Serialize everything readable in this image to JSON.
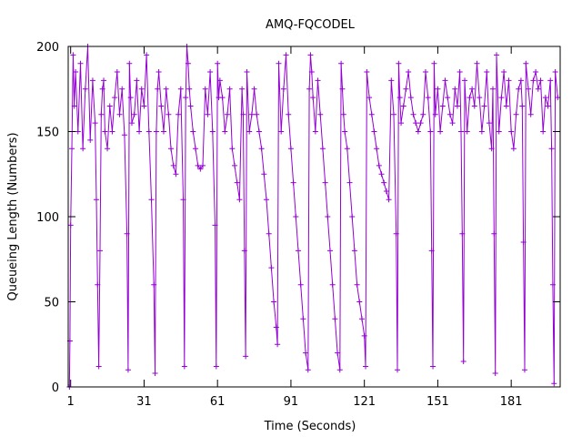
{
  "chart_data": {
    "type": "line",
    "title": "AMQ-FQCODEL",
    "xlabel": "Time (Seconds)",
    "ylabel": "Queueing Length (Numbers)",
    "xlim": [
      0,
      201
    ],
    "ylim": [
      0,
      200
    ],
    "xticks": [
      1,
      31,
      61,
      91,
      121,
      151,
      181
    ],
    "yticks": [
      0,
      50,
      100,
      150,
      200
    ],
    "grid": false,
    "legend": "none",
    "marker": "+",
    "series": [
      {
        "color": "#9400d3",
        "x": [
          0.5,
          0.7,
          1,
          1.5,
          2,
          2.5,
          3,
          4,
          5,
          6,
          7,
          8,
          9,
          10,
          11,
          11.5,
          12,
          12.5,
          13,
          13.5,
          14,
          14.5,
          15,
          16,
          17,
          18,
          19,
          20,
          21,
          22,
          23,
          24,
          24.5,
          25,
          25.5,
          26,
          27,
          28,
          29,
          30,
          31,
          32,
          33,
          34,
          35,
          35.5,
          36,
          36.5,
          37,
          38,
          39,
          40,
          41,
          42,
          43,
          44,
          45,
          46,
          47,
          47.5,
          48,
          48.5,
          49,
          49.5,
          50,
          51,
          52,
          53,
          54,
          55,
          56,
          57,
          58,
          59,
          60,
          60.5,
          61,
          61.5,
          62,
          63,
          64,
          65,
          66,
          67,
          68,
          69,
          70,
          71,
          71.5,
          72,
          72.5,
          73,
          74,
          75,
          76,
          77,
          78,
          79,
          80,
          81,
          82,
          83,
          84,
          85,
          85.5,
          86,
          87,
          88,
          89,
          90,
          91,
          92,
          93,
          94,
          95,
          96,
          97,
          98,
          98.5,
          99,
          99.5,
          100,
          101,
          102,
          103,
          104,
          105,
          106,
          107,
          108,
          109,
          110,
          111,
          111.5,
          112,
          112.5,
          113,
          114,
          115,
          116,
          117,
          118,
          119,
          120,
          121,
          121.5,
          122,
          123,
          124,
          125,
          126,
          127,
          128,
          129,
          130,
          131,
          132,
          133,
          134,
          134.5,
          135,
          135.5,
          136,
          137,
          138,
          139,
          140,
          141,
          142,
          143,
          144,
          145,
          146,
          147,
          148,
          148.5,
          149,
          149.5,
          150,
          151,
          152,
          153,
          154,
          155,
          156,
          157,
          158,
          159,
          160,
          160.5,
          161,
          161.5,
          162,
          163,
          164,
          165,
          166,
          167,
          168,
          169,
          170,
          171,
          172,
          173,
          173.5,
          174,
          174.5,
          175,
          176,
          177,
          178,
          179,
          180,
          181,
          182,
          183,
          184,
          185,
          185.5,
          186,
          186.5,
          187,
          188,
          189,
          190,
          191,
          192,
          193,
          194,
          195,
          196,
          197,
          197.5,
          198,
          198.5,
          199,
          200
        ],
        "y": [
          0,
          27,
          95,
          140,
          195,
          165,
          185,
          150,
          190,
          140,
          175,
          200,
          145,
          180,
          155,
          110,
          60,
          12,
          80,
          160,
          175,
          180,
          150,
          140,
          165,
          150,
          170,
          185,
          160,
          175,
          148,
          90,
          10,
          190,
          170,
          155,
          160,
          180,
          150,
          175,
          165,
          195,
          150,
          110,
          60,
          8,
          150,
          175,
          185,
          165,
          150,
          175,
          160,
          140,
          130,
          125,
          160,
          175,
          110,
          12,
          170,
          200,
          190,
          175,
          165,
          150,
          140,
          130,
          128,
          130,
          175,
          160,
          185,
          150,
          95,
          12,
          190,
          170,
          180,
          170,
          150,
          160,
          175,
          140,
          130,
          120,
          110,
          175,
          160,
          80,
          18,
          185,
          150,
          160,
          175,
          160,
          150,
          140,
          125,
          110,
          90,
          70,
          50,
          35,
          25,
          190,
          150,
          175,
          195,
          160,
          140,
          120,
          100,
          80,
          60,
          40,
          20,
          10,
          175,
          195,
          185,
          170,
          150,
          180,
          160,
          140,
          120,
          100,
          80,
          60,
          40,
          20,
          10,
          190,
          175,
          160,
          150,
          140,
          120,
          100,
          80,
          60,
          50,
          40,
          30,
          12,
          185,
          170,
          160,
          150,
          140,
          130,
          125,
          120,
          115,
          110,
          180,
          160,
          90,
          10,
          190,
          170,
          155,
          165,
          175,
          185,
          170,
          160,
          155,
          150,
          155,
          160,
          185,
          170,
          150,
          80,
          12,
          190,
          160,
          175,
          150,
          165,
          180,
          170,
          160,
          155,
          175,
          165,
          185,
          150,
          90,
          15,
          180,
          150,
          170,
          175,
          165,
          190,
          170,
          150,
          165,
          185,
          155,
          140,
          175,
          90,
          8,
          195,
          150,
          170,
          185,
          165,
          180,
          150,
          140,
          160,
          175,
          180,
          165,
          85,
          10,
          190,
          175,
          160,
          180,
          185,
          175,
          180,
          150,
          170,
          165,
          180,
          140,
          60,
          2,
          185,
          170
        ]
      }
    ]
  }
}
